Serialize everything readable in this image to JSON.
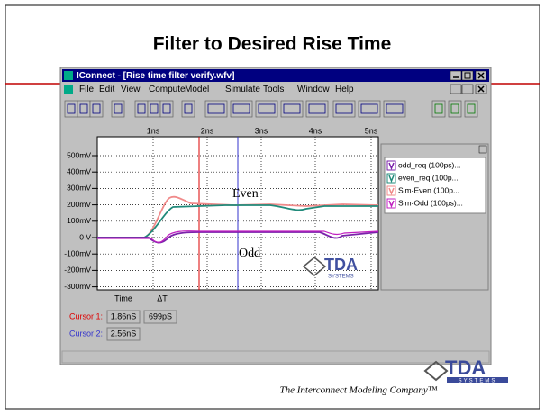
{
  "slide": {
    "title": "Filter to Desired Rise Time",
    "footer": "The Interconnect Modeling Company™",
    "logo": "TDA",
    "logo_sub": "SYSTEMS"
  },
  "window": {
    "title": "IConnect - [Rise time filter verify.wfv]",
    "menu": [
      "File",
      "Edit",
      "View",
      "Compute",
      "Model",
      "Simulate",
      "Tools",
      "Window",
      "Help"
    ]
  },
  "plot": {
    "x_labels": [
      "1ns",
      "2ns",
      "3ns",
      "4ns",
      "5ns"
    ],
    "y_labels": [
      "500mV",
      "400mV",
      "300mV",
      "200mV",
      "100mV",
      "0 V",
      "-100mV",
      "-200mV",
      "-300mV"
    ],
    "annotations": [
      "Even",
      "Odd"
    ],
    "legend": [
      "odd_req (100ps)...",
      "even_req (100p...",
      "Sim-Even (100p...",
      "Sim-Odd (100ps)..."
    ]
  },
  "cursors": {
    "headers": [
      "Time",
      "ΔT"
    ],
    "rows": [
      {
        "label": "Cursor 1:",
        "time": "1.86nS",
        "delta": "699pS"
      },
      {
        "label": "Cursor 2:",
        "time": "2.56nS"
      }
    ]
  }
}
